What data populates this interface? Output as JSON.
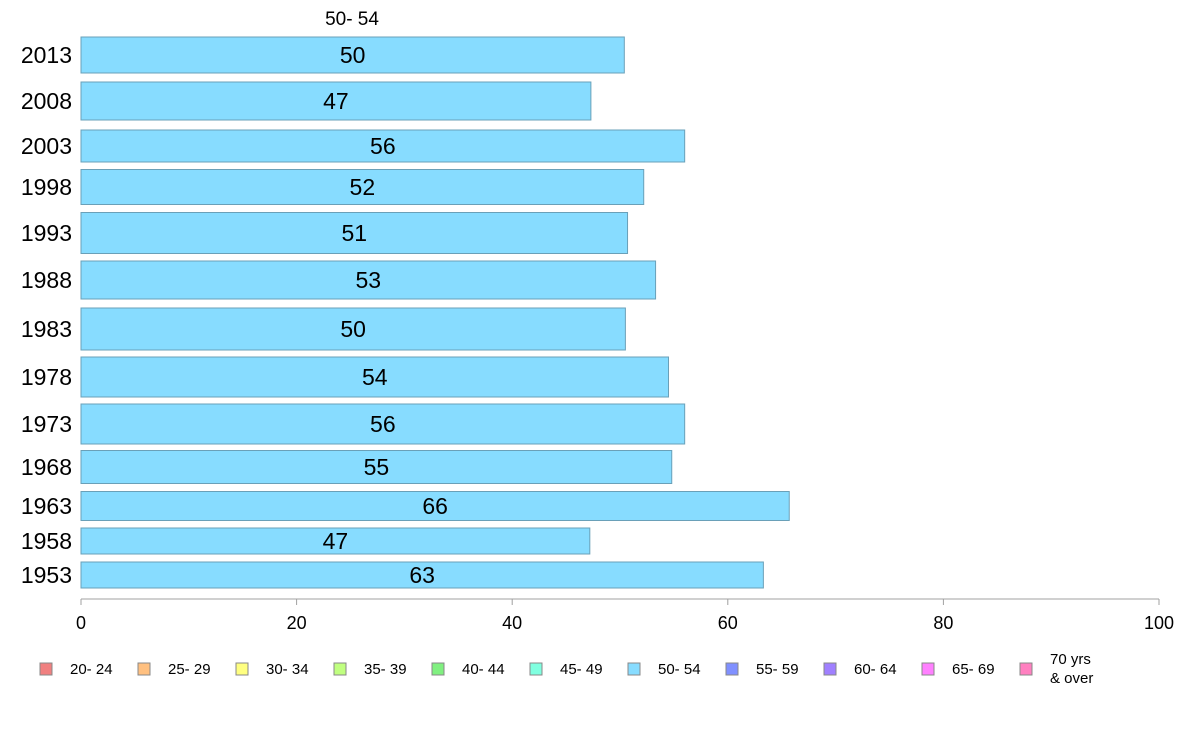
{
  "chart_data": {
    "type": "bar",
    "orientation": "horizontal",
    "series_title": "50- 54",
    "categories": [
      "2013",
      "2008",
      "2003",
      "1998",
      "1993",
      "1988",
      "1983",
      "1978",
      "1973",
      "1968",
      "1963",
      "1958",
      "1953"
    ],
    "series": [
      {
        "name": "50- 54",
        "color": "#87dcff",
        "values": [
          50.4,
          47.3,
          56.0,
          52.2,
          50.7,
          53.3,
          50.5,
          54.5,
          56.0,
          54.8,
          65.7,
          47.2,
          63.3
        ],
        "labels": [
          "50",
          "47",
          "56",
          "52",
          "51",
          "53",
          "50",
          "54",
          "56",
          "55",
          "66",
          "47",
          "63"
        ]
      }
    ],
    "xlim": [
      0,
      100
    ],
    "xticks": [
      "0",
      "20",
      "40",
      "60",
      "80",
      "100"
    ],
    "grid": false,
    "legend_position": "bottom",
    "legend": [
      {
        "label": "20- 24",
        "color": "#f08080"
      },
      {
        "label": "25- 29",
        "color": "#ffc080"
      },
      {
        "label": "30- 34",
        "color": "#ffff80"
      },
      {
        "label": "35- 39",
        "color": "#c0ff80"
      },
      {
        "label": "40- 44",
        "color": "#80f080"
      },
      {
        "label": "45- 49",
        "color": "#80ffe0"
      },
      {
        "label": "50- 54",
        "color": "#87dcff"
      },
      {
        "label": "55- 59",
        "color": "#8090ff"
      },
      {
        "label": "60- 64",
        "color": "#a080ff"
      },
      {
        "label": "65- 69",
        "color": "#ff80ff"
      },
      {
        "label": "70 yrs\n& over",
        "color": "#ff80c0"
      }
    ]
  }
}
